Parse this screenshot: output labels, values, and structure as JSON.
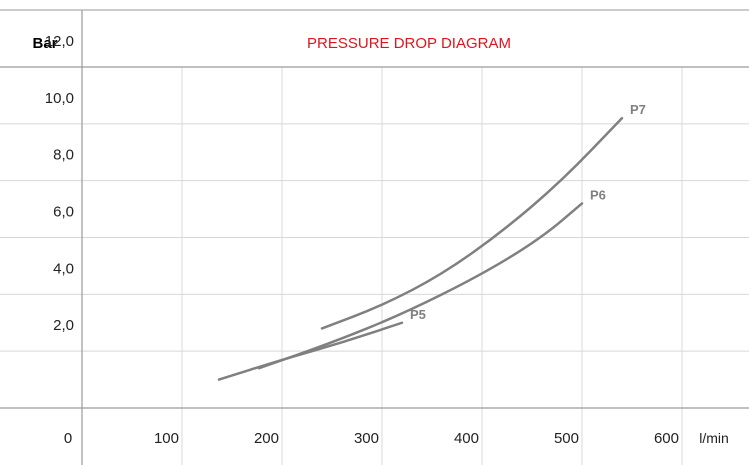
{
  "chart_data": {
    "type": "line",
    "title": "PRESSURE DROP DIAGRAM",
    "ylabel": "Bar",
    "xlabel": "l/min",
    "origin_label": "0",
    "x_ticks": [
      "100",
      "200",
      "300",
      "400",
      "500",
      "600"
    ],
    "y_ticks": [
      "12,0",
      "10,0",
      "8,0",
      "6,0",
      "4,0",
      "2,0"
    ],
    "xlim": [
      0,
      600
    ],
    "ylim": [
      0,
      12
    ],
    "grid": true,
    "series": [
      {
        "name": "P5",
        "points": [
          [
            137,
            1.0
          ],
          [
            200,
            1.7
          ],
          [
            260,
            2.3
          ],
          [
            320,
            3.0
          ]
        ]
      },
      {
        "name": "P6",
        "points": [
          [
            177,
            1.4
          ],
          [
            250,
            2.3
          ],
          [
            320,
            3.3
          ],
          [
            400,
            4.7
          ],
          [
            460,
            6.0
          ],
          [
            500,
            7.2
          ]
        ]
      },
      {
        "name": "P7",
        "points": [
          [
            240,
            2.8
          ],
          [
            300,
            3.6
          ],
          [
            360,
            4.7
          ],
          [
            420,
            6.2
          ],
          [
            480,
            8.0
          ],
          [
            540,
            10.2
          ]
        ]
      }
    ]
  },
  "colors": {
    "title": "#e0141e",
    "origin": "#e0141e",
    "line": "#808080",
    "series_label": "#808080",
    "grid": "#d8d8d8",
    "border": "#9a9a9a"
  }
}
